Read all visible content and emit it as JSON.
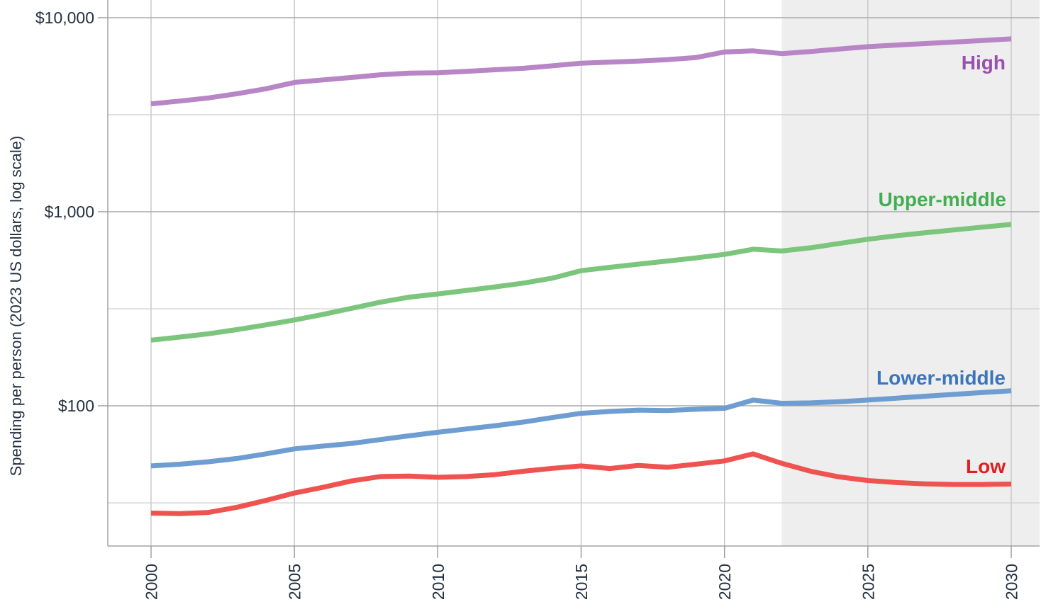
{
  "chart_data": {
    "type": "line",
    "title": "",
    "xlabel": "",
    "ylabel": "Spending per person (2023 US dollars, log scale)",
    "y_scale": "log",
    "grid": true,
    "legend_position": "end-of-line-labels",
    "y_tick_values": [
      10000,
      1000,
      100
    ],
    "y_tick_labels": [
      "$10,000",
      "$1,000",
      "$100"
    ],
    "y_minor_gridlines": [
      3162,
      316,
      31.6
    ],
    "x_ticks": [
      2000,
      2005,
      2010,
      2015,
      2020,
      2025,
      2030
    ],
    "x_range": [
      2000,
      2030
    ],
    "projection_start": 2022,
    "x": [
      2000,
      2001,
      2002,
      2003,
      2004,
      2005,
      2006,
      2007,
      2008,
      2009,
      2010,
      2011,
      2012,
      2013,
      2014,
      2015,
      2016,
      2017,
      2018,
      2019,
      2020,
      2021,
      2022,
      2023,
      2024,
      2025,
      2026,
      2027,
      2028,
      2029,
      2030
    ],
    "series": [
      {
        "name": "High",
        "label": "High",
        "line_color": "#b885c6",
        "label_color": "#9a50ae",
        "values": [
          3600,
          3720,
          3860,
          4060,
          4300,
          4640,
          4780,
          4920,
          5080,
          5180,
          5200,
          5290,
          5390,
          5490,
          5650,
          5830,
          5900,
          5980,
          6080,
          6230,
          6660,
          6750,
          6530,
          6700,
          6890,
          7090,
          7230,
          7360,
          7490,
          7630,
          7780
        ]
      },
      {
        "name": "Upper-middle",
        "label": "Upper-middle",
        "line_color": "#7cc57d",
        "label_color": "#44ad52",
        "values": [
          218,
          226,
          235,
          247,
          261,
          277,
          296,
          318,
          342,
          363,
          377,
          393,
          410,
          429,
          455,
          497,
          517,
          537,
          557,
          578,
          603,
          641,
          628,
          652,
          686,
          722,
          752,
          780,
          806,
          833,
          860
        ]
      },
      {
        "name": "Lower-middle",
        "label": "Lower-middle",
        "line_color": "#6d9dd1",
        "label_color": "#3a76bc",
        "values": [
          49,
          50,
          51.5,
          53.5,
          56.5,
          60,
          62,
          64,
          67,
          70,
          73,
          76,
          79,
          82.5,
          87,
          91.5,
          93.5,
          95,
          94.5,
          96,
          97,
          107,
          103,
          103.5,
          105,
          107,
          109.5,
          112,
          114.5,
          117,
          119.5
        ]
      },
      {
        "name": "Low",
        "label": "Low",
        "line_color": "#ef5350",
        "label_color": "#df1f1f",
        "values": [
          28,
          27.8,
          28.2,
          30,
          32.5,
          35.5,
          38,
          41,
          43.2,
          43.4,
          42.8,
          43.2,
          44.2,
          46,
          47.6,
          49,
          47.5,
          49.3,
          48.2,
          50,
          52,
          56.5,
          50.5,
          46,
          43,
          41.2,
          40.2,
          39.6,
          39.3,
          39.3,
          39.5
        ]
      }
    ],
    "style_colors": {
      "projection_fill": "#eeeeee",
      "axis_line": "#a3a3a3",
      "tick_mark": "#9a9a9a",
      "vertical_grid": "#c6c6c6",
      "major_horizontal_grid": "#aaaaaa",
      "minor_horizontal_grid": "#cbcbcb",
      "axis_text": "#243140"
    }
  }
}
